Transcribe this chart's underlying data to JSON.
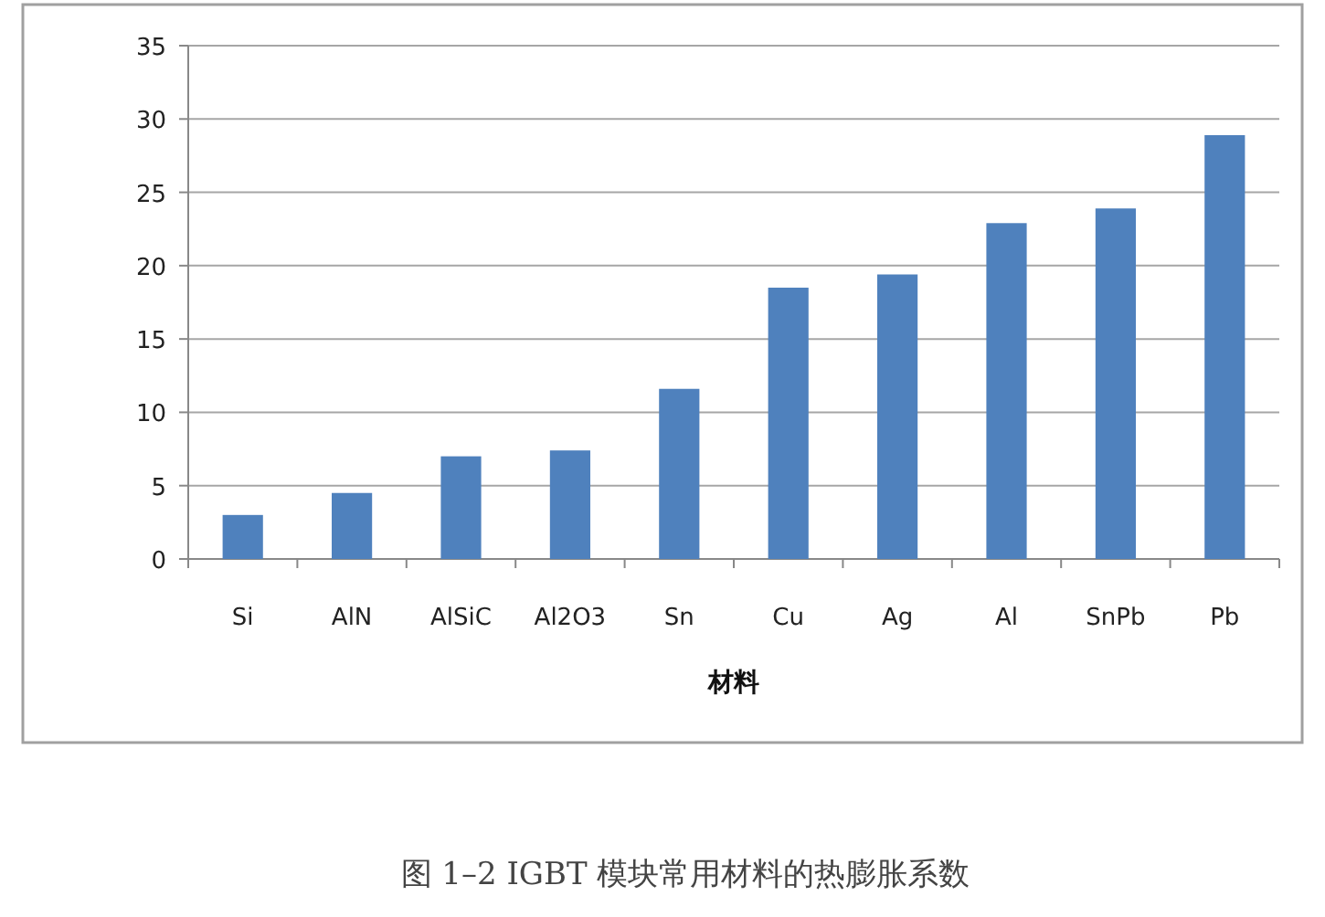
{
  "chart_data": {
    "type": "bar",
    "xlabel": "材料",
    "categories": [
      "Si",
      "AlN",
      "AlSiC",
      "Al2O3",
      "Sn",
      "Cu",
      "Ag",
      "Al",
      "SnPb",
      "Pb"
    ],
    "values": [
      3,
      4.5,
      7,
      7.4,
      11.6,
      18.5,
      19.4,
      22.9,
      23.9,
      28.9
    ],
    "color": "#4f81bd",
    "ylim": [
      0,
      35
    ],
    "yticks": [
      0,
      5,
      10,
      15,
      20,
      25,
      30,
      35
    ],
    "grid": "y",
    "annotations": [
      "图 1–2 IGBT 模块常用材料的热膨胀系数"
    ]
  }
}
